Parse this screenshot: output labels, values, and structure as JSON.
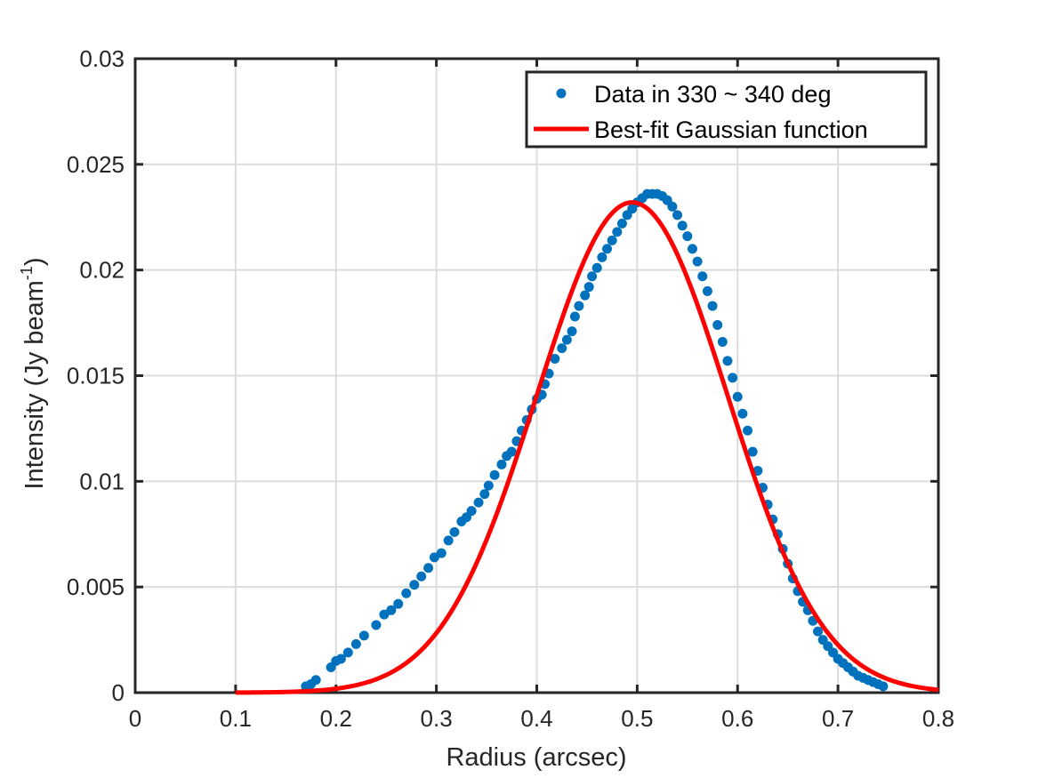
{
  "chart_data": {
    "type": "scatter",
    "xlabel": "Radius (arcsec)",
    "ylabel": "Intensity (Jy beam",
    "ylabel_sup": "-1",
    "ylabel_end": ")",
    "xlim": [
      0,
      0.8
    ],
    "ylim": [
      0,
      0.03
    ],
    "xticks": [
      0,
      0.1,
      0.2,
      0.3,
      0.4,
      0.5,
      0.6,
      0.7,
      0.8
    ],
    "xtick_labels": [
      "0",
      "0.1",
      "0.2",
      "0.3",
      "0.4",
      "0.5",
      "0.6",
      "0.7",
      "0.8"
    ],
    "yticks": [
      0,
      0.005,
      0.01,
      0.015,
      0.02,
      0.025,
      0.03
    ],
    "ytick_labels": [
      "0",
      "0.005",
      "0.01",
      "0.015",
      "0.02",
      "0.025",
      "0.03"
    ],
    "grid": true,
    "legend_position": "top-right",
    "colors": {
      "data": "#0072BD",
      "fit": "#FF0000",
      "axes": "#262626",
      "grid": "#DCDCDC"
    },
    "series": [
      {
        "name": "Data in 330 ~ 340 deg",
        "kind": "scatter",
        "x": [
          0.17,
          0.175,
          0.18,
          0.195,
          0.2,
          0.205,
          0.212,
          0.22,
          0.228,
          0.24,
          0.248,
          0.255,
          0.262,
          0.27,
          0.278,
          0.285,
          0.292,
          0.298,
          0.305,
          0.312,
          0.318,
          0.325,
          0.33,
          0.335,
          0.342,
          0.348,
          0.352,
          0.358,
          0.365,
          0.37,
          0.375,
          0.38,
          0.385,
          0.39,
          0.395,
          0.4,
          0.405,
          0.408,
          0.412,
          0.418,
          0.425,
          0.43,
          0.435,
          0.438,
          0.442,
          0.448,
          0.452,
          0.455,
          0.46,
          0.465,
          0.47,
          0.475,
          0.48,
          0.485,
          0.49,
          0.495,
          0.5,
          0.505,
          0.51,
          0.515,
          0.52,
          0.525,
          0.53,
          0.535,
          0.54,
          0.545,
          0.55,
          0.555,
          0.56,
          0.565,
          0.57,
          0.575,
          0.58,
          0.585,
          0.59,
          0.595,
          0.6,
          0.605,
          0.61,
          0.615,
          0.62,
          0.625,
          0.63,
          0.635,
          0.64,
          0.645,
          0.65,
          0.655,
          0.66,
          0.665,
          0.67,
          0.675,
          0.68,
          0.685,
          0.69,
          0.695,
          0.7,
          0.705,
          0.71,
          0.715,
          0.72,
          0.725,
          0.73,
          0.735,
          0.74,
          0.745
        ],
        "y": [
          0.0003,
          0.0004,
          0.0006,
          0.0012,
          0.0015,
          0.0016,
          0.0019,
          0.0023,
          0.0027,
          0.0032,
          0.0037,
          0.0039,
          0.0042,
          0.0047,
          0.0051,
          0.0055,
          0.0059,
          0.0064,
          0.0066,
          0.0072,
          0.0076,
          0.0081,
          0.0083,
          0.0086,
          0.009,
          0.0094,
          0.0098,
          0.0103,
          0.0108,
          0.0112,
          0.0114,
          0.0119,
          0.0124,
          0.0129,
          0.0134,
          0.0139,
          0.0141,
          0.0146,
          0.0151,
          0.0158,
          0.0163,
          0.0167,
          0.0171,
          0.0178,
          0.0183,
          0.0188,
          0.0192,
          0.0197,
          0.0201,
          0.0206,
          0.021,
          0.0214,
          0.0218,
          0.0222,
          0.0226,
          0.0229,
          0.0232,
          0.0234,
          0.0236,
          0.0236,
          0.0236,
          0.0235,
          0.0233,
          0.023,
          0.0226,
          0.0221,
          0.0216,
          0.021,
          0.0204,
          0.0197,
          0.019,
          0.0183,
          0.0174,
          0.0166,
          0.0157,
          0.0149,
          0.014,
          0.0132,
          0.0124,
          0.0114,
          0.0105,
          0.0097,
          0.0089,
          0.0082,
          0.0075,
          0.0068,
          0.0061,
          0.0054,
          0.0048,
          0.0043,
          0.0039,
          0.0034,
          0.0029,
          0.0025,
          0.0022,
          0.0019,
          0.0016,
          0.0014,
          0.0012,
          0.001,
          0.0008,
          0.0007,
          0.0006,
          0.0005,
          0.0004,
          0.0003
        ]
      },
      {
        "name": "Best-fit Gaussian function",
        "kind": "line",
        "function": "gaussian",
        "amplitude": 0.0232,
        "center": 0.495,
        "sigma": 0.095,
        "x_range": [
          0.1,
          0.8
        ]
      }
    ]
  }
}
